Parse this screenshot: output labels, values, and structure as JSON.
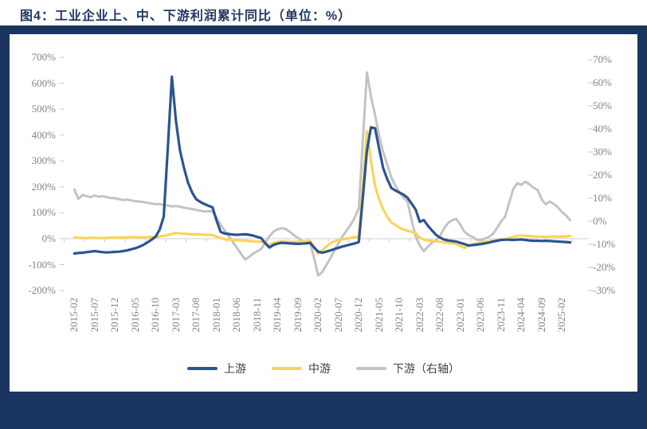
{
  "title": "图4：工业企业上、中、下游利润累计同比（单位：%）",
  "frame_color": "#1A355F",
  "axis_line_color": "#D9D9D9",
  "tick_color": "#C9C9C9",
  "axis_text_color": "#848484",
  "chart_data": {
    "type": "line",
    "title": "工业企业上、中、下游利润累计同比",
    "unit": "%",
    "start_month": "2015-02",
    "end_month": "2025-04",
    "x_tick_labels": [
      "2015-02",
      "2015-07",
      "2015-12",
      "2016-05",
      "2016-10",
      "2017-03",
      "2017-08",
      "2018-01",
      "2018-06",
      "2018-11",
      "2019-04",
      "2019-09",
      "2020-02",
      "2020-07",
      "2020-12",
      "2021-05",
      "2021-10",
      "2022-03",
      "2022-08",
      "2023-01",
      "2023-06",
      "2023-11",
      "2024-04",
      "2024-09",
      "2025-02"
    ],
    "left_axis": {
      "min": -200,
      "max": 700,
      "tick_step": 100,
      "tick_labels": [
        "700%",
        "600%",
        "500%",
        "400%",
        "300%",
        "200%",
        "100%",
        "0%",
        "-100%",
        "-200%"
      ]
    },
    "right_axis": {
      "min": -30,
      "max": 70,
      "tick_step": 10,
      "tick_labels": [
        "70%",
        "60%",
        "50%",
        "40%",
        "30%",
        "20%",
        "10%",
        "0%",
        "-10%",
        "-20%",
        "-30%"
      ]
    },
    "grid": false,
    "legend_position": "bottom",
    "series": [
      {
        "name": "上游",
        "axis": "left",
        "color": "#2B5491",
        "values": [
          -57,
          -55,
          -54,
          -52,
          -50,
          -48,
          -50,
          -52,
          -53,
          -52,
          -51,
          -50,
          -48,
          -45,
          -41,
          -37,
          -31,
          -24,
          -14,
          -4,
          8,
          35,
          85,
          350,
          625,
          455,
          340,
          272,
          215,
          178,
          152,
          142,
          134,
          127,
          121,
          70,
          26,
          20,
          18,
          16,
          15,
          16,
          17,
          15,
          12,
          7,
          2,
          -18,
          -34,
          -24,
          -19,
          -16,
          -17,
          -18,
          -19,
          -20,
          -19,
          -18,
          -16,
          -34,
          -50,
          -54,
          -50,
          -45,
          -40,
          -35,
          -30,
          -26,
          -22,
          -18,
          -13,
          160,
          340,
          430,
          426,
          348,
          272,
          230,
          196,
          186,
          178,
          170,
          158,
          135,
          112,
          65,
          72,
          50,
          32,
          15,
          4,
          -3,
          -7,
          -9,
          -11,
          -16,
          -21,
          -26,
          -25,
          -23,
          -21,
          -18,
          -15,
          -11,
          -8,
          -5,
          -4,
          -4,
          -5,
          -4,
          -3,
          -5,
          -7,
          -8,
          -8,
          -9,
          -8,
          -9,
          -10,
          -11,
          -12,
          -13,
          -14
        ]
      },
      {
        "name": "中游",
        "axis": "left",
        "color": "#F9D45C",
        "values": [
          4,
          3,
          3,
          2,
          3,
          3,
          2,
          2,
          3,
          4,
          5,
          5,
          4,
          5,
          6,
          6,
          5,
          5,
          6,
          6,
          7,
          9,
          11,
          14,
          18,
          22,
          20,
          19,
          18,
          17,
          17,
          16,
          15,
          15,
          14,
          8,
          2,
          -2,
          -4,
          -5,
          -6,
          -7,
          -8,
          -9,
          -10,
          -11,
          -12,
          -18,
          -25,
          -16,
          -12,
          -11,
          -12,
          -13,
          -12,
          -12,
          -11,
          -10,
          -8,
          -30,
          -58,
          -45,
          -30,
          -18,
          -10,
          -5,
          -2,
          0,
          3,
          6,
          9,
          200,
          415,
          300,
          205,
          152,
          113,
          85,
          62,
          54,
          42,
          36,
          31,
          26,
          21,
          4,
          -3,
          -7,
          -9,
          -10,
          -12,
          -14,
          -16,
          -18,
          -20,
          -28,
          -35,
          -28,
          -22,
          -18,
          -15,
          -12,
          -10,
          -8,
          -6,
          -4,
          -2,
          2,
          6,
          11,
          12,
          11,
          10,
          9,
          8,
          8,
          7,
          8,
          9,
          8,
          8,
          9,
          10
        ]
      },
      {
        "name": "下游（右轴）",
        "axis": "right",
        "color": "#C3C3C3",
        "values": [
          13.8,
          9.7,
          11.4,
          10.9,
          10.5,
          11.2,
          10.6,
          10.9,
          10.4,
          10.1,
          10,
          9.6,
          9.2,
          9.4,
          9,
          8.7,
          8.5,
          8.3,
          8,
          7.7,
          7.4,
          7.5,
          7.1,
          6.8,
          6.4,
          6.6,
          6.3,
          5.9,
          5.6,
          5.3,
          4.9,
          4.6,
          4.2,
          4.4,
          4.2,
          1.5,
          -1.5,
          -4,
          -6.5,
          -9,
          -11.5,
          -14,
          -16.5,
          -15.5,
          -14,
          -13,
          -12,
          -9,
          -6.5,
          -4.5,
          -3.5,
          -3,
          -3.3,
          -4.5,
          -6,
          -7.2,
          -8.5,
          -9.3,
          -9,
          -16,
          -23.5,
          -22,
          -19,
          -16,
          -12.5,
          -9.5,
          -6.5,
          -4,
          -1.5,
          1.6,
          5.6,
          35,
          64.5,
          54,
          46,
          37,
          30,
          24.5,
          19,
          15.4,
          12.5,
          10.2,
          8.5,
          0.5,
          -6.5,
          -10.5,
          -13,
          -11,
          -9.3,
          -8.2,
          -6.4,
          -3,
          -0.7,
          0.5,
          1,
          -1.5,
          -4.5,
          -6,
          -6.8,
          -8,
          -8.2,
          -7.5,
          -6.8,
          -5.5,
          -3,
          -0.1,
          2,
          8,
          14,
          16.5,
          15.8,
          17.2,
          16,
          14.5,
          13.5,
          9.5,
          7.3,
          8.5,
          7.5,
          6,
          4,
          2.5,
          0.5
        ]
      }
    ]
  }
}
